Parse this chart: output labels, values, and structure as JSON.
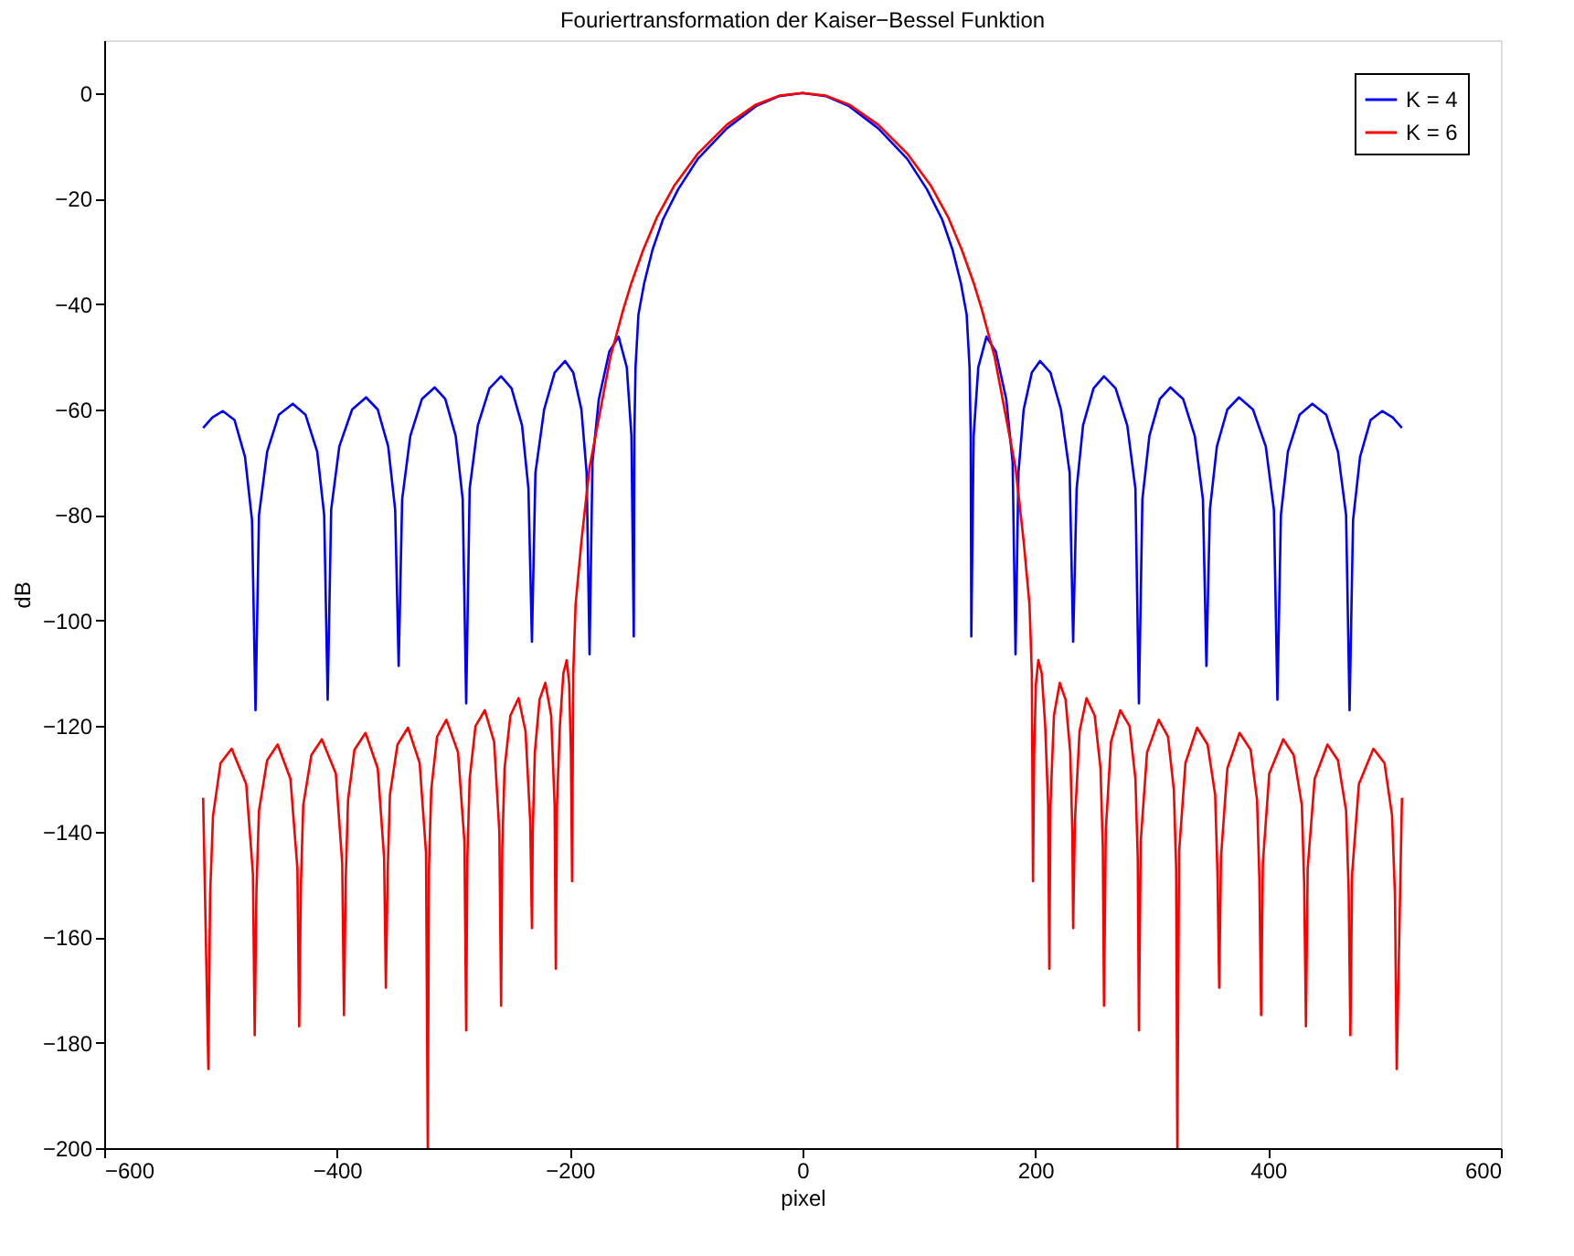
{
  "chart_data": {
    "type": "line",
    "title": "Fouriertransformation der Kaiser−Bessel Funktion",
    "xlabel": "pixel",
    "ylabel": "dB",
    "xlim": [
      -600,
      600
    ],
    "xticks": [
      -600,
      -400,
      -200,
      0,
      200,
      400,
      600
    ],
    "ylim": [
      -200,
      10
    ],
    "yticks": [
      -200,
      -180,
      -160,
      -140,
      -120,
      -100,
      -80,
      -60,
      -40,
      -20,
      0
    ],
    "grid": false,
    "legend": "top right",
    "marker": "none",
    "line_style": "solid",
    "series": [
      {
        "name": "K = 4",
        "color": "#0000ff",
        "x": [
          -515,
          -507,
          -498,
          -488,
          -479,
          -473,
          -470,
          -467,
          -460,
          -450,
          -438,
          -427,
          -417,
          -411,
          -408,
          -405,
          -398,
          -387,
          -375,
          -365,
          -356,
          -350,
          -347,
          -344,
          -337,
          -327,
          -316,
          -307,
          -298,
          -292,
          -289,
          -286,
          -279,
          -269,
          -259,
          -250,
          -241,
          -235.5,
          -232.5,
          -229.5,
          -222,
          -213,
          -204,
          -197,
          -190,
          -185.5,
          -183,
          -180.5,
          -175,
          -166,
          -158,
          -151,
          -147,
          -145,
          -144.5,
          -143.5,
          -141,
          -136,
          -129,
          -120,
          -107,
          -90,
          -65,
          -40,
          -20,
          0,
          20,
          40,
          65,
          90,
          107,
          120,
          129,
          136,
          141,
          143.5,
          144.5,
          145,
          147,
          151,
          158,
          166,
          175,
          180.5,
          183,
          185.5,
          190,
          197,
          204,
          213,
          222,
          229.5,
          232.5,
          235.5,
          241,
          250,
          259,
          269,
          279,
          286,
          289,
          292,
          298,
          307,
          316,
          327,
          337,
          344,
          347,
          350,
          356,
          365,
          375,
          387,
          398,
          405,
          408,
          411,
          417,
          427,
          438,
          450,
          460,
          467,
          470,
          473,
          479,
          488,
          498,
          507,
          515
        ],
        "values": [
          -63.5,
          -61.5,
          -60.3,
          -62,
          -69,
          -81,
          -117,
          -80,
          -68,
          -61,
          -58.9,
          -61,
          -68,
          -80,
          -115,
          -79,
          -67,
          -60,
          -57.7,
          -60,
          -67,
          -79,
          -108.6,
          -77,
          -65,
          -58,
          -55.8,
          -58,
          -65,
          -77,
          -115.7,
          -75,
          -63,
          -56,
          -53.7,
          -56,
          -63,
          -75,
          -104,
          -72,
          -60,
          -53,
          -50.8,
          -53,
          -60,
          -72,
          -106.4,
          -70,
          -58,
          -49,
          -46.2,
          -52,
          -65,
          -103,
          -65,
          -52,
          -42,
          -36,
          -29.8,
          -24,
          -18.3,
          -12.5,
          -6.7,
          -2.5,
          -0.6,
          0,
          -0.6,
          -2.5,
          -6.7,
          -12.5,
          -18.3,
          -24,
          -29.8,
          -36,
          -42,
          -52,
          -65,
          -103,
          -65,
          -52,
          -46.2,
          -49,
          -58,
          -70,
          -106.4,
          -72,
          -60,
          -53,
          -50.8,
          -53,
          -60,
          -72,
          -104,
          -75,
          -63,
          -56,
          -53.7,
          -56,
          -63,
          -75,
          -115.7,
          -77,
          -65,
          -58,
          -55.8,
          -58,
          -65,
          -77,
          -108.6,
          -79,
          -67,
          -60,
          -57.7,
          -60,
          -67,
          -79,
          -115,
          -80,
          -68,
          -61,
          -58.9,
          -61,
          -68,
          -80,
          -117,
          -81,
          -69,
          -62,
          -60.3,
          -61.5,
          -63.5
        ]
      },
      {
        "name": "K = 6",
        "color": "#ff0000",
        "x": [
          -515,
          -510.5,
          -509,
          -506.5,
          -500,
          -490.5,
          -478,
          -472.2,
          -470.7,
          -469.2,
          -467,
          -460,
          -451,
          -440,
          -434,
          -432.5,
          -431,
          -429,
          -422,
          -413,
          -401,
          -395.5,
          -394,
          -392.5,
          -390.5,
          -385,
          -375.5,
          -365,
          -359.5,
          -358,
          -356.5,
          -354.5,
          -348,
          -339,
          -329,
          -323.5,
          -322,
          -321,
          -319,
          -314,
          -306,
          -296,
          -290.5,
          -289,
          -288,
          -286,
          -281,
          -273,
          -265,
          -260.5,
          -259,
          -258,
          -256,
          -251,
          -244,
          -238,
          -234,
          -232.5,
          -231.8,
          -230,
          -226,
          -221,
          -216,
          -213,
          -212,
          -211,
          -208.5,
          -205.5,
          -202.6,
          -200.5,
          -199,
          -198,
          -197,
          -195,
          -190,
          -183,
          -177,
          -165,
          -154,
          -147,
          -137,
          -125,
          -110,
          -90,
          -65,
          -40,
          -20,
          0,
          20,
          40,
          65,
          90,
          110,
          125,
          137,
          147,
          154,
          165,
          177,
          183,
          190,
          195,
          197,
          198,
          199,
          200.5,
          202.6,
          205.5,
          208.5,
          211,
          212,
          213,
          216,
          221,
          226,
          230,
          231.8,
          232.5,
          234,
          238,
          244,
          251,
          256,
          258,
          259,
          260.5,
          265,
          273,
          281,
          286,
          288,
          289,
          290.5,
          296,
          306,
          314,
          319,
          321,
          322,
          323.5,
          329,
          339,
          348,
          354.5,
          356.5,
          358,
          359.5,
          365,
          375.5,
          385,
          390.5,
          392.5,
          394,
          395.5,
          401,
          413,
          422,
          429,
          431,
          432.5,
          434,
          440,
          451,
          460,
          467,
          469.2,
          470.7,
          472.2,
          478,
          490.5,
          500,
          506.5,
          509,
          510.5,
          515
        ],
        "values": [
          -133.6,
          -185,
          -152,
          -137,
          -127,
          -124.3,
          -131,
          -148,
          -178.6,
          -151,
          -136,
          -126.5,
          -123.5,
          -130,
          -147,
          -176.9,
          -150,
          -135,
          -125.5,
          -122.5,
          -129,
          -146,
          -174.8,
          -149,
          -134,
          -124.5,
          -121.3,
          -128,
          -145,
          -169.6,
          -148,
          -133,
          -123.5,
          -120.3,
          -127,
          -144,
          -200,
          -147,
          -132,
          -122,
          -118.8,
          -125,
          -142,
          -177.7,
          -145,
          -130,
          -120,
          -117,
          -123,
          -140,
          -173,
          -143,
          -128,
          -118,
          -114.7,
          -121,
          -138,
          -158.3,
          -140,
          -125,
          -115,
          -111.8,
          -118,
          -135,
          -166,
          -135,
          -120,
          -110,
          -107.5,
          -112,
          -125,
          -149.4,
          -110,
          -97,
          -85,
          -71,
          -64,
          -50,
          -41,
          -36,
          -29.8,
          -23.5,
          -17.5,
          -11.5,
          -6,
          -2.2,
          -0.5,
          0,
          -0.5,
          -2.2,
          -6,
          -11.5,
          -17.5,
          -23.5,
          -29.8,
          -36,
          -41,
          -50,
          -64,
          -71,
          -85,
          -97,
          -110,
          -149.4,
          -125,
          -112,
          -107.5,
          -110,
          -120,
          -135,
          -166,
          -135,
          -118,
          -111.8,
          -115,
          -125,
          -140,
          -158.3,
          -138,
          -121,
          -114.7,
          -118,
          -128,
          -143,
          -173,
          -140,
          -123,
          -117,
          -120,
          -130,
          -145,
          -177.7,
          -142,
          -125,
          -118.8,
          -122,
          -132,
          -147,
          -200,
          -144,
          -127,
          -120.3,
          -123.5,
          -133,
          -148,
          -169.6,
          -145,
          -128,
          -121.3,
          -124.5,
          -134,
          -149,
          -174.8,
          -146,
          -129,
          -122.5,
          -125.5,
          -135,
          -150,
          -176.9,
          -147,
          -130,
          -123.5,
          -126.5,
          -136,
          -151,
          -178.6,
          -148,
          -131,
          -124.3,
          -127,
          -137,
          -152,
          -185,
          -133.6
        ]
      }
    ]
  }
}
